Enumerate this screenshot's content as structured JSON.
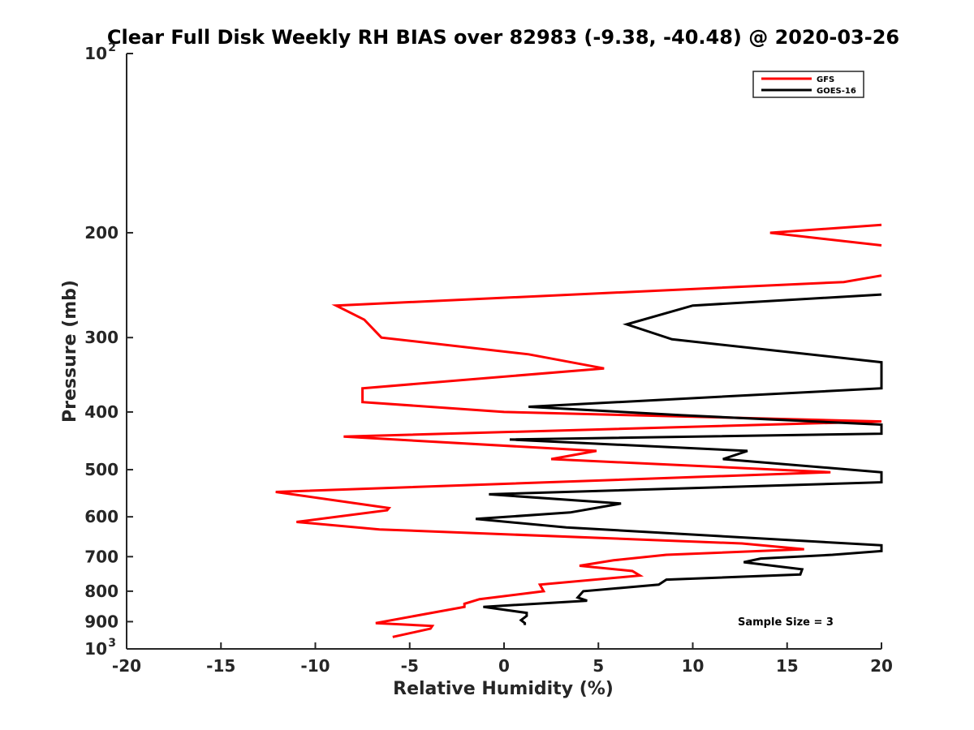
{
  "chart_data": {
    "type": "line",
    "title": "Clear Full Disk Weekly RH BIAS over 82983 (-9.38, -40.48) @ 2020-03-26",
    "xlabel": "Relative Humidity (%)",
    "ylabel": "Pressure (mb)",
    "xlim": [
      -20,
      20
    ],
    "ylim": [
      100,
      1000
    ],
    "yscale": "log",
    "yreversed": true,
    "grid": false,
    "xticks": [
      -20,
      -15,
      -10,
      -5,
      0,
      5,
      10,
      15,
      20
    ],
    "xtick_labels": [
      "-20",
      "-15",
      "-10",
      "-5",
      "0",
      "5",
      "10",
      "15",
      "20"
    ],
    "yticks": [
      200,
      300,
      400,
      500,
      600,
      700,
      800,
      900
    ],
    "ytick_labels": [
      "200",
      "300",
      "400",
      "500",
      "600",
      "700",
      "800",
      "900"
    ],
    "ylim_labels": {
      "top": {
        "base": "10",
        "exp": "2"
      },
      "bottom": {
        "base": "10",
        "exp": "3"
      }
    },
    "legend": {
      "position": "top-right",
      "entries": [
        {
          "name": "GFS",
          "color": "#ff0000"
        },
        {
          "name": "GOES-16",
          "color": "#000000"
        }
      ]
    },
    "annotation": "Sample Size = 3",
    "series": [
      {
        "name": "GFS",
        "color": "#ff0000",
        "points": [
          [
            20.0,
            194
          ],
          [
            14.1,
            200
          ],
          [
            20.0,
            210
          ],
          [
            null,
            null
          ],
          [
            20.0,
            236
          ],
          [
            18.0,
            242
          ],
          [
            -8.9,
            265
          ],
          [
            -7.4,
            280
          ],
          [
            -6.5,
            300
          ],
          [
            1.3,
            320
          ],
          [
            5.3,
            338
          ],
          [
            -7.5,
            365
          ],
          [
            -7.5,
            385
          ],
          [
            0.0,
            400
          ],
          [
            20.0,
            415
          ],
          [
            -8.5,
            440
          ],
          [
            4.9,
            465
          ],
          [
            2.5,
            480
          ],
          [
            17.3,
            505
          ],
          [
            -12.1,
            545
          ],
          [
            -6.1,
            580
          ],
          [
            -6.2,
            585
          ],
          [
            -11.0,
            612
          ],
          [
            -6.6,
            630
          ],
          [
            12.6,
            665
          ],
          [
            15.9,
            680
          ],
          [
            8.6,
            695
          ],
          [
            5.8,
            710
          ],
          [
            4.0,
            725
          ],
          [
            6.8,
            740
          ],
          [
            7.2,
            753
          ],
          [
            1.9,
            780
          ],
          [
            2.1,
            800
          ],
          [
            -1.3,
            825
          ],
          [
            -2.1,
            840
          ],
          [
            -2.1,
            850
          ],
          [
            -6.8,
            905
          ],
          [
            -3.8,
            915
          ],
          [
            -3.9,
            925
          ],
          [
            -5.9,
            955
          ]
        ]
      },
      {
        "name": "GOES-16",
        "color": "#000000",
        "points": [
          [
            20.0,
            254
          ],
          [
            10.0,
            265
          ],
          [
            6.5,
            285
          ],
          [
            8.9,
            302
          ],
          [
            20.0,
            330
          ],
          [
            20.0,
            365
          ],
          [
            1.3,
            392
          ],
          [
            9.4,
            405
          ],
          [
            20.0,
            420
          ],
          [
            20.0,
            435
          ],
          [
            0.3,
            445
          ],
          [
            12.9,
            465
          ],
          [
            11.6,
            480
          ],
          [
            20.0,
            505
          ],
          [
            20.0,
            525
          ],
          [
            -0.8,
            550
          ],
          [
            6.2,
            570
          ],
          [
            3.5,
            590
          ],
          [
            -1.5,
            605
          ],
          [
            3.3,
            625
          ],
          [
            20.0,
            670
          ],
          [
            20.0,
            685
          ],
          [
            17.4,
            695
          ],
          [
            13.6,
            705
          ],
          [
            12.7,
            715
          ],
          [
            15.8,
            735
          ],
          [
            15.7,
            750
          ],
          [
            8.6,
            765
          ],
          [
            8.2,
            780
          ],
          [
            4.2,
            800
          ],
          [
            3.9,
            820
          ],
          [
            4.4,
            830
          ],
          [
            -1.1,
            850
          ],
          [
            1.2,
            870
          ],
          [
            1.2,
            880
          ],
          [
            0.9,
            895
          ],
          [
            1.1,
            905
          ],
          [
            1.1,
            912
          ]
        ]
      }
    ]
  }
}
